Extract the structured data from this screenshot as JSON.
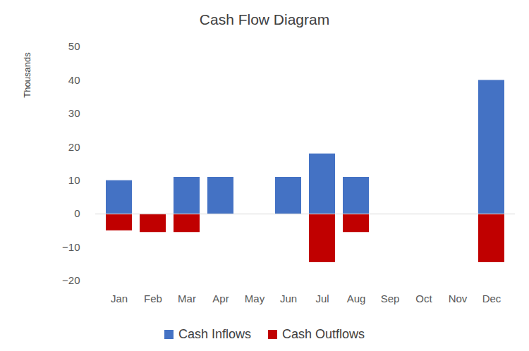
{
  "chart_data": {
    "type": "bar",
    "title": "Cash Flow Diagram",
    "y_label": "Thousands",
    "categories": [
      "Jan",
      "Feb",
      "Mar",
      "Apr",
      "May",
      "Jun",
      "Jul",
      "Aug",
      "Sep",
      "Oct",
      "Nov",
      "Dec"
    ],
    "series": [
      {
        "name": "Cash Inflows",
        "color": "#4472c4",
        "values": [
          10,
          0,
          11,
          11,
          0,
          11,
          18,
          11,
          0,
          0,
          0,
          40
        ]
      },
      {
        "name": "Cash Outflows",
        "color": "#c00000",
        "values": [
          -5,
          -5.5,
          -5.5,
          0,
          0,
          0,
          -14.5,
          -5.5,
          0,
          0,
          0,
          -14.5
        ]
      }
    ],
    "ylim": [
      -20,
      50
    ],
    "yticks": [
      -20,
      -10,
      0,
      10,
      20,
      30,
      40,
      50
    ],
    "grid": false,
    "legend": "bottom"
  }
}
